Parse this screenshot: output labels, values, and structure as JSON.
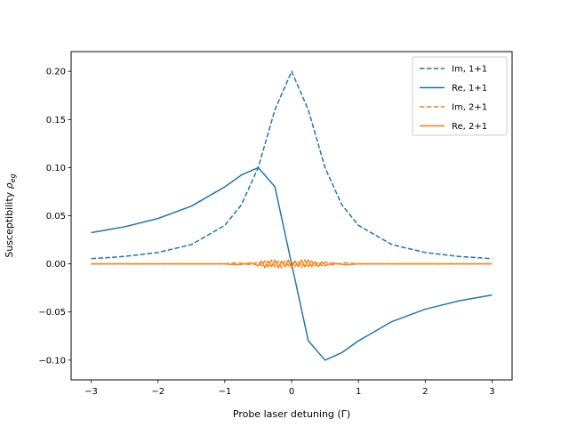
{
  "chart_data": {
    "type": "line",
    "xlabel": "Probe laser detuning (Γ)",
    "ylabel": {
      "prefix": "Susceptibility ",
      "symbol": "ρ",
      "subscript": "eg"
    },
    "xlim": [
      -3.3,
      3.3
    ],
    "ylim": [
      -0.1205,
      0.2205
    ],
    "xticks": [
      -3,
      -2,
      -1,
      0,
      1,
      2,
      3
    ],
    "xtick_labels": [
      "−3",
      "−2",
      "−1",
      "0",
      "1",
      "2",
      "3"
    ],
    "yticks": [
      -0.1,
      -0.05,
      0.0,
      0.05,
      0.1,
      0.15,
      0.2
    ],
    "ytick_labels": [
      "−0.10",
      "−0.05",
      "0.00",
      "0.05",
      "0.10",
      "0.15",
      "0.20"
    ],
    "legend_position": "top-right",
    "grid": false,
    "series": [
      {
        "name": "Im, 1+1",
        "color": "#1f77b4",
        "style": "dashed",
        "x": [
          -3,
          -2.5,
          -2,
          -1.5,
          -1,
          -0.75,
          -0.5,
          -0.25,
          0,
          0.25,
          0.5,
          0.75,
          1,
          1.5,
          2,
          2.5,
          3
        ],
        "y": [
          0.0054,
          0.0077,
          0.0118,
          0.02,
          0.04,
          0.0615,
          0.1,
          0.16,
          0.2,
          0.16,
          0.1,
          0.0615,
          0.04,
          0.02,
          0.0118,
          0.0077,
          0.0054
        ]
      },
      {
        "name": "Re, 1+1",
        "color": "#1f77b4",
        "style": "solid",
        "x": [
          -3,
          -2.5,
          -2,
          -1.5,
          -1,
          -0.75,
          -0.5,
          -0.25,
          0,
          0.25,
          0.5,
          0.75,
          1,
          1.5,
          2,
          2.5,
          3
        ],
        "y": [
          0.0324,
          0.0385,
          0.0471,
          0.06,
          0.08,
          0.0923,
          0.1,
          0.08,
          0.0,
          -0.08,
          -0.1,
          -0.0923,
          -0.08,
          -0.06,
          -0.0471,
          -0.0385,
          -0.0324
        ]
      },
      {
        "name": "Im, 2+1",
        "color": "#ff7f0e",
        "style": "dashed",
        "x": [
          -3,
          -1.0,
          -0.8,
          -0.6,
          -0.5,
          -0.45,
          -0.4,
          -0.35,
          -0.3,
          -0.25,
          -0.2,
          -0.15,
          -0.1,
          -0.05,
          0,
          0.05,
          0.1,
          0.15,
          0.2,
          0.25,
          0.3,
          0.35,
          0.4,
          0.45,
          0.5,
          0.6,
          0.8,
          1.0,
          3
        ],
        "y": [
          0.0,
          0.0,
          0.001,
          -0.001,
          0.002,
          -0.002,
          0.003,
          -0.003,
          0.004,
          -0.003,
          0.003,
          -0.004,
          0.003,
          -0.002,
          0.002,
          -0.003,
          0.003,
          -0.004,
          0.004,
          -0.003,
          0.003,
          -0.002,
          0.002,
          -0.002,
          0.002,
          -0.001,
          0.001,
          0.0,
          0.0
        ]
      },
      {
        "name": "Re, 2+1",
        "color": "#ff7f0e",
        "style": "solid",
        "x": [
          -3,
          -1.0,
          -0.8,
          -0.6,
          -0.5,
          -0.45,
          -0.4,
          -0.35,
          -0.3,
          -0.25,
          -0.2,
          -0.15,
          -0.1,
          -0.05,
          0,
          0.05,
          0.1,
          0.15,
          0.2,
          0.25,
          0.3,
          0.35,
          0.4,
          0.45,
          0.5,
          0.6,
          0.8,
          1.0,
          3
        ],
        "y": [
          0.0,
          0.0,
          -0.001,
          0.001,
          -0.002,
          0.003,
          -0.004,
          0.003,
          -0.003,
          0.004,
          -0.004,
          0.003,
          -0.003,
          0.004,
          -0.004,
          0.003,
          -0.003,
          0.004,
          -0.003,
          0.004,
          -0.003,
          0.002,
          -0.003,
          0.002,
          -0.002,
          0.001,
          -0.001,
          0.0,
          0.0
        ]
      }
    ]
  }
}
